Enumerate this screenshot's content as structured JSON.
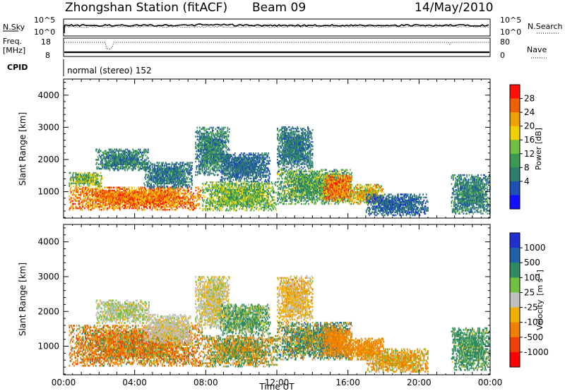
{
  "header": {
    "station": "Zhongshan Station (fitACF)",
    "beam": "Beam 09",
    "date": "14/May/2010"
  },
  "top_panels": {
    "nsky_label": "N.Sky",
    "nsky_ticks": [
      "10^5",
      "10^0"
    ],
    "nsearch_label": "N.Search",
    "nsearch_ticks": [
      "10^5",
      "10^0"
    ],
    "freq_label_line1": "Freq.",
    "freq_label_line2": "[MHz]",
    "freq_ticks": [
      "18",
      "8"
    ],
    "nave_label": "Nave",
    "nave_ticks": [
      "80",
      "0"
    ],
    "cpid_label": "CPID",
    "cpid_text": "normal (stereo) 152"
  },
  "chart_data": [
    {
      "type": "heatmap",
      "name": "power",
      "ylabel": "Slant Range [km]",
      "ylim": [
        180,
        4500
      ],
      "yticks": [
        1000,
        2000,
        3000,
        4000
      ],
      "xlim": [
        0,
        24
      ],
      "colorbar": {
        "label": "Power [dB]",
        "range": [
          0,
          30
        ],
        "ticks": [
          "28",
          "24",
          "20",
          "16",
          "12",
          "8",
          "4"
        ],
        "colors": [
          "#1010ff",
          "#1e4fb4",
          "#2f7d6c",
          "#3a9a50",
          "#70c040",
          "#f0d000",
          "#f0a000",
          "#f06000",
          "#ff1000"
        ]
      },
      "echo_regions": [
        {
          "t": [
            0.3,
            7.8
          ],
          "r": [
            420,
            1150
          ],
          "p": [
            18,
            29
          ]
        },
        {
          "t": [
            0.3,
            2.2
          ],
          "r": [
            1150,
            1600
          ],
          "p": [
            8,
            22
          ]
        },
        {
          "t": [
            1.8,
            4.8
          ],
          "r": [
            1650,
            2300
          ],
          "p": [
            4,
            14
          ]
        },
        {
          "t": [
            4.5,
            7.2
          ],
          "r": [
            1100,
            1900
          ],
          "p": [
            4,
            12
          ]
        },
        {
          "t": [
            7.4,
            9.3
          ],
          "r": [
            1500,
            3000
          ],
          "p": [
            4,
            14
          ]
        },
        {
          "t": [
            7.8,
            12.0
          ],
          "r": [
            400,
            1300
          ],
          "p": [
            8,
            20
          ]
        },
        {
          "t": [
            8.8,
            11.6
          ],
          "r": [
            1300,
            2200
          ],
          "p": [
            4,
            10
          ]
        },
        {
          "t": [
            12.0,
            14.0
          ],
          "r": [
            1700,
            3000
          ],
          "p": [
            4,
            12
          ]
        },
        {
          "t": [
            12.0,
            16.2
          ],
          "r": [
            600,
            1700
          ],
          "p": [
            6,
            18
          ]
        },
        {
          "t": [
            14.6,
            16.2
          ],
          "r": [
            700,
            1500
          ],
          "p": [
            18,
            29
          ]
        },
        {
          "t": [
            16.0,
            18.0
          ],
          "r": [
            600,
            1200
          ],
          "p": [
            12,
            26
          ]
        },
        {
          "t": [
            17.0,
            20.5
          ],
          "r": [
            250,
            900
          ],
          "p": [
            3,
            10
          ]
        },
        {
          "t": [
            21.8,
            24.0
          ],
          "r": [
            300,
            1500
          ],
          "p": [
            4,
            14
          ]
        }
      ]
    },
    {
      "type": "heatmap",
      "name": "velocity",
      "ylabel": "Slant Range [km]",
      "xlabel": "Time UT",
      "ylim": [
        180,
        4500
      ],
      "yticks": [
        1000,
        2000,
        3000,
        4000
      ],
      "xlim": [
        0,
        24
      ],
      "xticks": [
        "00:00",
        "04:00",
        "08:00",
        "12:00",
        "16:00",
        "20:00",
        "00:00"
      ],
      "colorbar": {
        "label": "Velocity",
        "label_unit": "[m s",
        "label_exp": "-1",
        "label_close": "]",
        "ticks": [
          "1000",
          "500",
          "100",
          "25",
          "-25",
          "-100",
          "-500",
          "-1000"
        ],
        "colors": [
          "#2030d0",
          "#1f60a8",
          "#2f8a60",
          "#70c040",
          "#c0c0c0",
          "#f0b000",
          "#f08000",
          "#f04000",
          "#ff0000"
        ]
      },
      "echo_regions": [
        {
          "t": [
            0.3,
            7.8
          ],
          "r": [
            420,
            1600
          ],
          "v": [
            -700,
            200
          ]
        },
        {
          "t": [
            1.8,
            4.8
          ],
          "r": [
            1650,
            2300
          ],
          "v": [
            -40,
            60
          ]
        },
        {
          "t": [
            4.5,
            7.2
          ],
          "r": [
            1100,
            1900
          ],
          "v": [
            -40,
            30
          ]
        },
        {
          "t": [
            7.4,
            9.3
          ],
          "r": [
            1500,
            3000
          ],
          "v": [
            -60,
            40
          ]
        },
        {
          "t": [
            7.8,
            12.0
          ],
          "r": [
            400,
            1300
          ],
          "v": [
            -400,
            400
          ]
        },
        {
          "t": [
            8.8,
            11.6
          ],
          "r": [
            1300,
            2200
          ],
          "v": [
            -60,
            300
          ]
        },
        {
          "t": [
            12.0,
            14.0
          ],
          "r": [
            1700,
            3000
          ],
          "v": [
            -120,
            30
          ]
        },
        {
          "t": [
            12.0,
            16.2
          ],
          "r": [
            600,
            1700
          ],
          "v": [
            -300,
            600
          ]
        },
        {
          "t": [
            14.6,
            16.2
          ],
          "r": [
            700,
            1500
          ],
          "v": [
            -500,
            -60
          ]
        },
        {
          "t": [
            16.0,
            18.0
          ],
          "r": [
            600,
            1200
          ],
          "v": [
            -400,
            -40
          ]
        },
        {
          "t": [
            17.0,
            20.5
          ],
          "r": [
            250,
            900
          ],
          "v": [
            -300,
            100
          ]
        },
        {
          "t": [
            21.8,
            24.0
          ],
          "r": [
            300,
            1500
          ],
          "v": [
            -50,
            500
          ]
        }
      ]
    }
  ]
}
